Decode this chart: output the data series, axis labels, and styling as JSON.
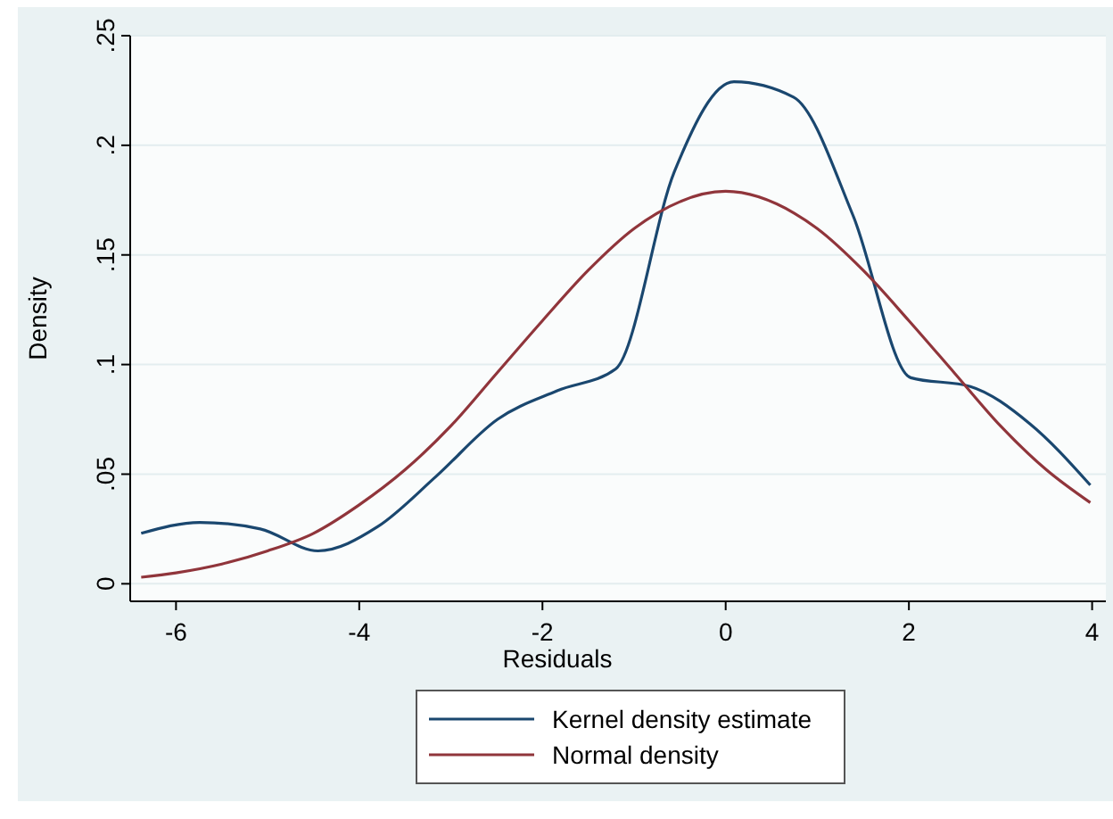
{
  "chart_data": {
    "type": "line",
    "xlabel": "Residuals",
    "ylabel": "Density",
    "xlim": [
      -6.5,
      4.15
    ],
    "xticks": [
      -6,
      -4,
      -2,
      0,
      2,
      4
    ],
    "ylim": [
      -0.008,
      0.25
    ],
    "yticks": [
      {
        "value": 0,
        "label": "0"
      },
      {
        "value": 0.05,
        "label": ".05"
      },
      {
        "value": 0.1,
        "label": ".1"
      },
      {
        "value": 0.15,
        "label": ".15"
      },
      {
        "value": 0.2,
        "label": ".2"
      },
      {
        "value": 0.25,
        "label": ".25"
      }
    ],
    "grid": "y",
    "legend": "bottom",
    "line_style": "solid",
    "marker": "none",
    "series": [
      {
        "name": "Kernel density estimate",
        "color": "#1a476f",
        "x": [
          -6.38,
          -5.74,
          -5.08,
          -4.45,
          -3.8,
          -3.16,
          -2.49,
          -1.84,
          -1.2,
          -0.56,
          0.09,
          0.74,
          1.39,
          2.02,
          2.67,
          3.32,
          3.98
        ],
        "values": [
          0.023,
          0.028,
          0.025,
          0.015,
          0.026,
          0.049,
          0.075,
          0.088,
          0.098,
          0.188,
          0.229,
          0.222,
          0.168,
          0.094,
          0.09,
          0.073,
          0.045
        ]
      },
      {
        "name": "Normal density",
        "color": "#90353b",
        "x": [
          -6.38,
          -6,
          -5.5,
          -5,
          -4.5,
          -4,
          -3.5,
          -3,
          -2.5,
          -2,
          -1.5,
          -1,
          -0.75,
          0,
          0.75,
          1,
          1.5,
          2,
          2.5,
          3,
          3.5,
          3.98
        ],
        "values": [
          0.003,
          0.005,
          0.009,
          0.015,
          0.023,
          0.036,
          0.052,
          0.072,
          0.096,
          0.12,
          0.143,
          0.162,
          0.169,
          0.179,
          0.169,
          0.162,
          0.143,
          0.12,
          0.096,
          0.072,
          0.052,
          0.037
        ]
      }
    ]
  }
}
